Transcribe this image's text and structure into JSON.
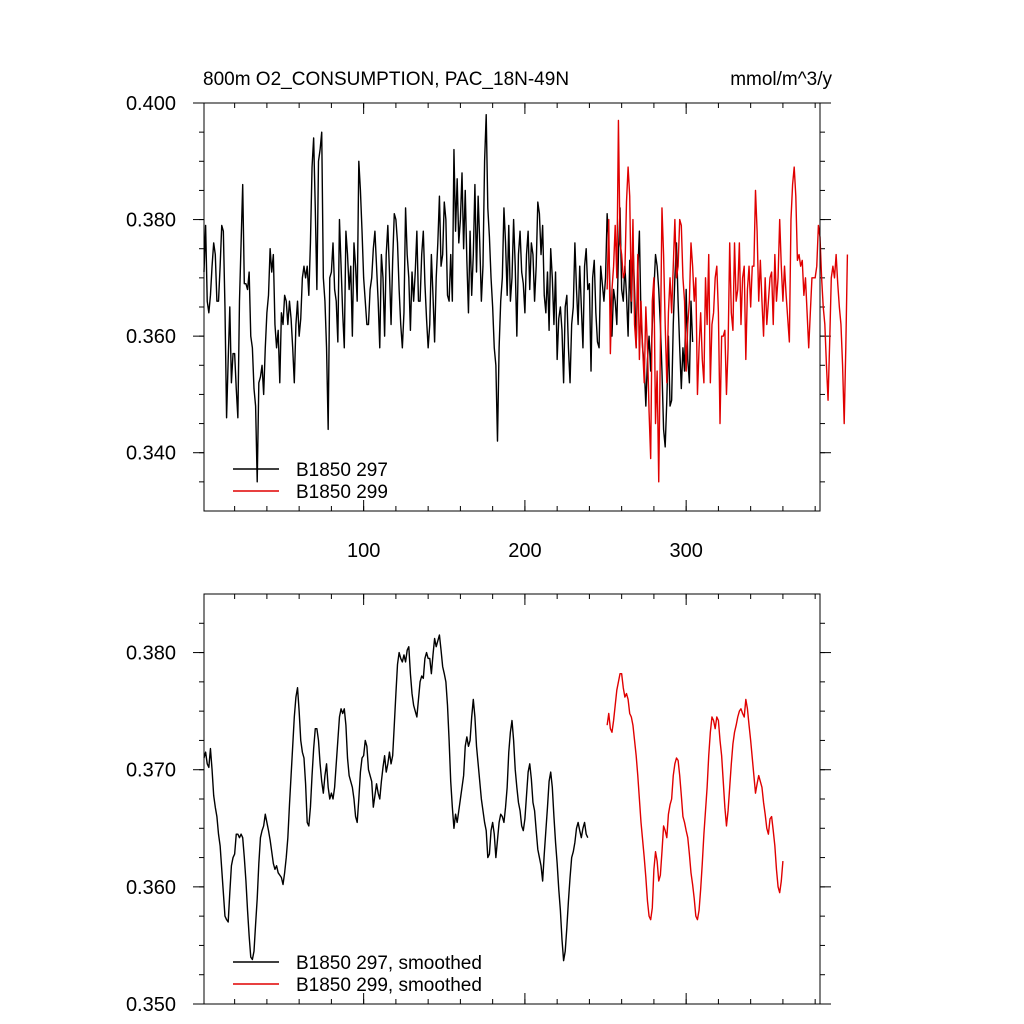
{
  "colors": {
    "black": "#000000",
    "red": "#e00000"
  },
  "chart_data": [
    {
      "type": "line",
      "title": "800m O2_CONSUMPTION, PAC_18N-49N",
      "units": "mmol/m^3/y",
      "xlim": [
        1,
        383
      ],
      "ylim": [
        0.33,
        0.4
      ],
      "x_ticks": [
        100,
        200,
        300
      ],
      "x_tick_labels": [
        "100",
        "200",
        "300"
      ],
      "y_ticks": [
        0.34,
        0.36,
        0.38,
        0.4
      ],
      "y_tick_labels": [
        "0.340",
        "0.360",
        "0.380",
        "0.400"
      ],
      "legend_position": "bottom-left",
      "series": [
        {
          "name": "B1850 297",
          "color": "#000000",
          "x0": 1,
          "values": [
            0.371,
            0.379,
            0.366,
            0.364,
            0.367,
            0.372,
            0.376,
            0.374,
            0.366,
            0.366,
            0.372,
            0.379,
            0.378,
            0.365,
            0.346,
            0.356,
            0.365,
            0.352,
            0.357,
            0.357,
            0.351,
            0.346,
            0.366,
            0.376,
            0.386,
            0.369,
            0.369,
            0.368,
            0.371,
            0.36,
            0.358,
            0.351,
            0.348,
            0.335,
            0.352,
            0.353,
            0.355,
            0.35,
            0.358,
            0.364,
            0.367,
            0.375,
            0.371,
            0.374,
            0.362,
            0.358,
            0.361,
            0.352,
            0.364,
            0.362,
            0.367,
            0.366,
            0.362,
            0.366,
            0.363,
            0.358,
            0.352,
            0.362,
            0.366,
            0.36,
            0.363,
            0.37,
            0.372,
            0.37,
            0.372,
            0.367,
            0.376,
            0.389,
            0.394,
            0.382,
            0.368,
            0.39,
            0.392,
            0.395,
            0.37,
            0.366,
            0.358,
            0.344,
            0.37,
            0.371,
            0.376,
            0.368,
            0.366,
            0.359,
            0.38,
            0.372,
            0.364,
            0.358,
            0.378,
            0.374,
            0.368,
            0.372,
            0.36,
            0.376,
            0.372,
            0.366,
            0.39,
            0.385,
            0.378,
            0.37,
            0.366,
            0.362,
            0.362,
            0.368,
            0.37,
            0.375,
            0.378,
            0.372,
            0.366,
            0.358,
            0.374,
            0.37,
            0.36,
            0.374,
            0.379,
            0.371,
            0.362,
            0.373,
            0.381,
            0.38,
            0.376,
            0.368,
            0.362,
            0.358,
            0.364,
            0.382,
            0.374,
            0.37,
            0.361,
            0.371,
            0.366,
            0.371,
            0.378,
            0.366,
            0.366,
            0.374,
            0.378,
            0.369,
            0.363,
            0.358,
            0.362,
            0.374,
            0.367,
            0.359,
            0.37,
            0.376,
            0.384,
            0.372,
            0.374,
            0.383,
            0.38,
            0.367,
            0.366,
            0.374,
            0.366,
            0.392,
            0.378,
            0.387,
            0.376,
            0.38,
            0.388,
            0.375,
            0.385,
            0.373,
            0.364,
            0.378,
            0.367,
            0.374,
            0.386,
            0.371,
            0.384,
            0.376,
            0.366,
            0.372,
            0.39,
            0.398,
            0.382,
            0.377,
            0.37,
            0.365,
            0.358,
            0.355,
            0.342,
            0.358,
            0.366,
            0.37,
            0.382,
            0.376,
            0.367,
            0.379,
            0.366,
            0.37,
            0.38,
            0.372,
            0.36,
            0.374,
            0.378,
            0.371,
            0.369,
            0.364,
            0.374,
            0.378,
            0.368,
            0.376,
            0.374,
            0.366,
            0.372,
            0.383,
            0.381,
            0.374,
            0.379,
            0.367,
            0.364,
            0.371,
            0.361,
            0.375,
            0.37,
            0.362,
            0.371,
            0.356,
            0.363,
            0.365,
            0.361,
            0.352,
            0.365,
            0.367,
            0.358,
            0.352,
            0.362,
            0.365,
            0.376,
            0.368,
            0.362,
            0.372,
            0.365,
            0.358,
            0.372,
            0.375,
            0.368,
            0.369,
            0.354,
            0.37,
            0.373,
            0.364,
            0.359,
            0.358,
            0.372,
            0.369,
            0.366,
            0.37,
            0.381,
            0.376,
            0.365,
            0.36,
            0.368,
            0.366,
            0.362,
            0.374,
            0.382,
            0.368,
            0.366,
            0.372,
            0.367,
            0.36,
            0.373,
            0.364,
            0.376,
            0.368,
            0.358,
            0.371,
            0.378,
            0.363,
            0.358,
            0.355,
            0.348,
            0.356,
            0.36,
            0.354,
            0.362,
            0.368,
            0.374,
            0.372,
            0.368,
            0.362,
            0.354,
            0.344,
            0.341,
            0.349,
            0.36,
            0.348,
            0.349,
            0.362,
            0.37,
            0.376,
            0.366,
            0.358,
            0.351,
            0.358,
            0.354,
            0.368,
            0.356,
            0.352,
            0.366,
            0.359
          ]
        },
        {
          "name": "B1850 299",
          "color": "#e00000",
          "x0": 251,
          "values": [
            0.368,
            0.38,
            0.357,
            0.368,
            0.372,
            0.379,
            0.37,
            0.397,
            0.376,
            0.374,
            0.37,
            0.371,
            0.383,
            0.389,
            0.384,
            0.366,
            0.38,
            0.362,
            0.358,
            0.374,
            0.356,
            0.366,
            0.358,
            0.352,
            0.365,
            0.358,
            0.347,
            0.339,
            0.366,
            0.37,
            0.345,
            0.354,
            0.335,
            0.358,
            0.382,
            0.374,
            0.362,
            0.352,
            0.364,
            0.37,
            0.364,
            0.372,
            0.38,
            0.37,
            0.372,
            0.38,
            0.379,
            0.37,
            0.366,
            0.354,
            0.362,
            0.366,
            0.376,
            0.372,
            0.366,
            0.37,
            0.35,
            0.358,
            0.364,
            0.356,
            0.352,
            0.37,
            0.362,
            0.374,
            0.352,
            0.362,
            0.364,
            0.37,
            0.372,
            0.364,
            0.345,
            0.36,
            0.36,
            0.361,
            0.35,
            0.358,
            0.376,
            0.364,
            0.361,
            0.376,
            0.366,
            0.368,
            0.376,
            0.362,
            0.37,
            0.372,
            0.356,
            0.368,
            0.372,
            0.365,
            0.372,
            0.372,
            0.385,
            0.378,
            0.366,
            0.373,
            0.366,
            0.36,
            0.37,
            0.362,
            0.366,
            0.37,
            0.371,
            0.362,
            0.374,
            0.366,
            0.37,
            0.38,
            0.372,
            0.366,
            0.372,
            0.367,
            0.363,
            0.359,
            0.38,
            0.386,
            0.389,
            0.384,
            0.373,
            0.374,
            0.372,
            0.373,
            0.367,
            0.37,
            0.364,
            0.358,
            0.364,
            0.37,
            0.37,
            0.37,
            0.372,
            0.379,
            0.377,
            0.37,
            0.365,
            0.362,
            0.355,
            0.349,
            0.359,
            0.37,
            0.372,
            0.37,
            0.374,
            0.369,
            0.365,
            0.362,
            0.355,
            0.345,
            0.358,
            0.374
          ]
        }
      ]
    },
    {
      "type": "line",
      "title": "",
      "xlim": [
        1,
        383
      ],
      "ylim": [
        0.35,
        0.385
      ],
      "x_ticks": [
        100,
        200,
        300
      ],
      "x_tick_labels": [],
      "y_ticks": [
        0.35,
        0.36,
        0.37,
        0.38
      ],
      "y_tick_labels": [
        "0.350",
        "0.360",
        "0.370",
        "0.380"
      ],
      "legend_position": "bottom-left",
      "series": [
        {
          "name": "B1850 297, smoothed",
          "color": "#000000",
          "x0": 1,
          "values": [
            0.371,
            0.3715,
            0.3705,
            0.3702,
            0.3718,
            0.37,
            0.3678,
            0.3668,
            0.366,
            0.3645,
            0.3635,
            0.3615,
            0.3595,
            0.3575,
            0.3572,
            0.357,
            0.3595,
            0.3618,
            0.3625,
            0.3628,
            0.3645,
            0.3645,
            0.3642,
            0.3645,
            0.3642,
            0.3625,
            0.3605,
            0.358,
            0.3558,
            0.354,
            0.3538,
            0.3545,
            0.3568,
            0.359,
            0.362,
            0.3642,
            0.3648,
            0.3652,
            0.3662,
            0.3655,
            0.3648,
            0.364,
            0.363,
            0.362,
            0.3615,
            0.3618,
            0.3612,
            0.361,
            0.3608,
            0.3602,
            0.3612,
            0.3625,
            0.3642,
            0.367,
            0.3695,
            0.372,
            0.3745,
            0.3762,
            0.377,
            0.375,
            0.3725,
            0.3715,
            0.371,
            0.3688,
            0.3655,
            0.3652,
            0.3668,
            0.3695,
            0.3718,
            0.3735,
            0.3735,
            0.3725,
            0.3705,
            0.369,
            0.368,
            0.3695,
            0.3705,
            0.3685,
            0.3675,
            0.368,
            0.3675,
            0.3685,
            0.3705,
            0.3725,
            0.3745,
            0.3752,
            0.3748,
            0.3752,
            0.3738,
            0.371,
            0.3695,
            0.369,
            0.3685,
            0.3675,
            0.366,
            0.3655,
            0.3675,
            0.3698,
            0.371,
            0.3712,
            0.3725,
            0.372,
            0.37,
            0.3695,
            0.369,
            0.3668,
            0.3678,
            0.3688,
            0.368,
            0.3675,
            0.369,
            0.3702,
            0.3712,
            0.3698,
            0.3705,
            0.3715,
            0.3705,
            0.3712,
            0.3738,
            0.3765,
            0.379,
            0.38,
            0.3795,
            0.3792,
            0.3798,
            0.3792,
            0.3802,
            0.3805,
            0.3782,
            0.3765,
            0.3755,
            0.375,
            0.3745,
            0.376,
            0.3775,
            0.378,
            0.3778,
            0.3795,
            0.38,
            0.3795,
            0.3795,
            0.3782,
            0.3798,
            0.3812,
            0.3805,
            0.381,
            0.3815,
            0.3802,
            0.3788,
            0.3782,
            0.3775,
            0.3755,
            0.3725,
            0.369,
            0.3668,
            0.365,
            0.3662,
            0.3655,
            0.3665,
            0.3675,
            0.3685,
            0.3695,
            0.372,
            0.3728,
            0.372,
            0.3725,
            0.3745,
            0.376,
            0.3745,
            0.372,
            0.3705,
            0.369,
            0.3675,
            0.3665,
            0.3655,
            0.3648,
            0.3625,
            0.3628,
            0.3648,
            0.3655,
            0.3645,
            0.3625,
            0.364,
            0.3655,
            0.3662,
            0.366,
            0.3655,
            0.3668,
            0.3685,
            0.3715,
            0.3732,
            0.3742,
            0.3725,
            0.37,
            0.3685,
            0.3672,
            0.3665,
            0.3652,
            0.3648,
            0.3658,
            0.3678,
            0.3698,
            0.3705,
            0.3692,
            0.3672,
            0.3665,
            0.3648,
            0.3632,
            0.3625,
            0.3618,
            0.3605,
            0.3628,
            0.3648,
            0.3668,
            0.369,
            0.3698,
            0.3685,
            0.366,
            0.3638,
            0.362,
            0.3598,
            0.358,
            0.3555,
            0.3537,
            0.3545,
            0.3565,
            0.3588,
            0.3608,
            0.3625,
            0.363,
            0.3638,
            0.365,
            0.3655,
            0.3648,
            0.3642,
            0.365,
            0.3655,
            0.3645,
            0.3642
          ]
        },
        {
          "name": "B1850 299, smoothed",
          "color": "#e00000",
          "x0": 251,
          "values": [
            0.3738,
            0.3748,
            0.3735,
            0.3732,
            0.3742,
            0.3755,
            0.3768,
            0.3775,
            0.3782,
            0.3782,
            0.377,
            0.3762,
            0.3765,
            0.376,
            0.3748,
            0.3745,
            0.3738,
            0.3725,
            0.3712,
            0.3695,
            0.3675,
            0.3655,
            0.364,
            0.3625,
            0.3608,
            0.3588,
            0.3575,
            0.3572,
            0.3582,
            0.3615,
            0.363,
            0.3622,
            0.3605,
            0.361,
            0.363,
            0.3652,
            0.3648,
            0.3642,
            0.3662,
            0.367,
            0.3675,
            0.3695,
            0.3705,
            0.371,
            0.3708,
            0.3695,
            0.3678,
            0.366,
            0.3655,
            0.3648,
            0.3642,
            0.3628,
            0.3612,
            0.3602,
            0.359,
            0.3575,
            0.3572,
            0.358,
            0.3598,
            0.362,
            0.3645,
            0.3665,
            0.3685,
            0.3712,
            0.3732,
            0.3745,
            0.3742,
            0.3735,
            0.3745,
            0.3742,
            0.3725,
            0.3712,
            0.369,
            0.3668,
            0.3652,
            0.3665,
            0.3685,
            0.3705,
            0.3722,
            0.3732,
            0.3738,
            0.3745,
            0.375,
            0.3752,
            0.3748,
            0.3745,
            0.376,
            0.3752,
            0.3738,
            0.3725,
            0.371,
            0.3695,
            0.368,
            0.3688,
            0.3695,
            0.369,
            0.3685,
            0.3672,
            0.3662,
            0.365,
            0.3645,
            0.3658,
            0.366,
            0.3648,
            0.3635,
            0.3615,
            0.36,
            0.3595,
            0.3605,
            0.3622
          ]
        }
      ]
    }
  ]
}
